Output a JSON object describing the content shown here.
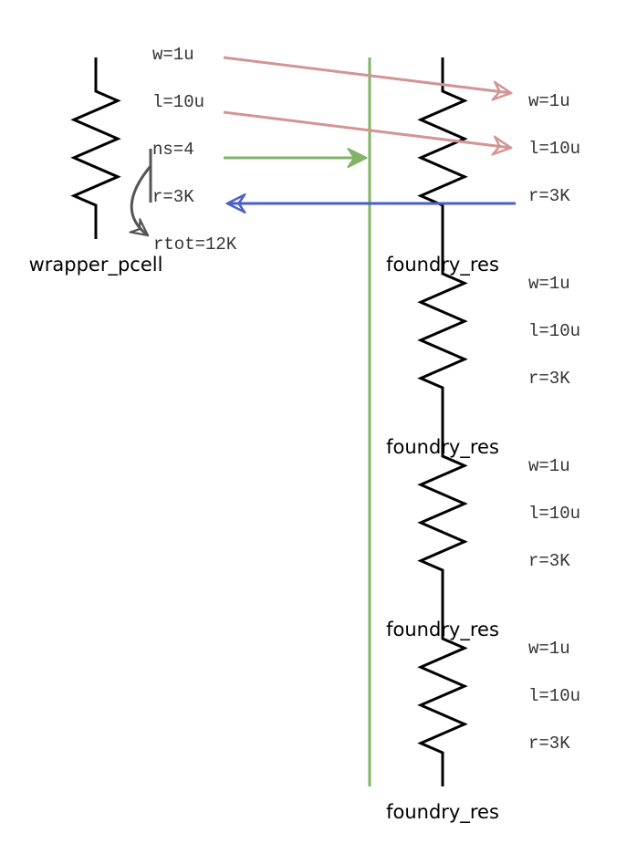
{
  "wrapper": {
    "params": [
      "w=1u",
      "l=10u",
      "ns=4",
      "r=3K"
    ],
    "result": "rtot=12K",
    "label": "wrapper_pcell"
  },
  "foundry_cells": [
    {
      "params": [
        "w=1u",
        "l=10u",
        "r=3K"
      ],
      "label": "foundry_res"
    },
    {
      "params": [
        "w=1u",
        "l=10u",
        "r=3K"
      ],
      "label": "foundry_res"
    },
    {
      "params": [
        "w=1u",
        "l=10u",
        "r=3K"
      ],
      "label": "foundry_res"
    },
    {
      "params": [
        "w=1u",
        "l=10u",
        "r=3K"
      ],
      "label": "foundry_res"
    }
  ]
}
